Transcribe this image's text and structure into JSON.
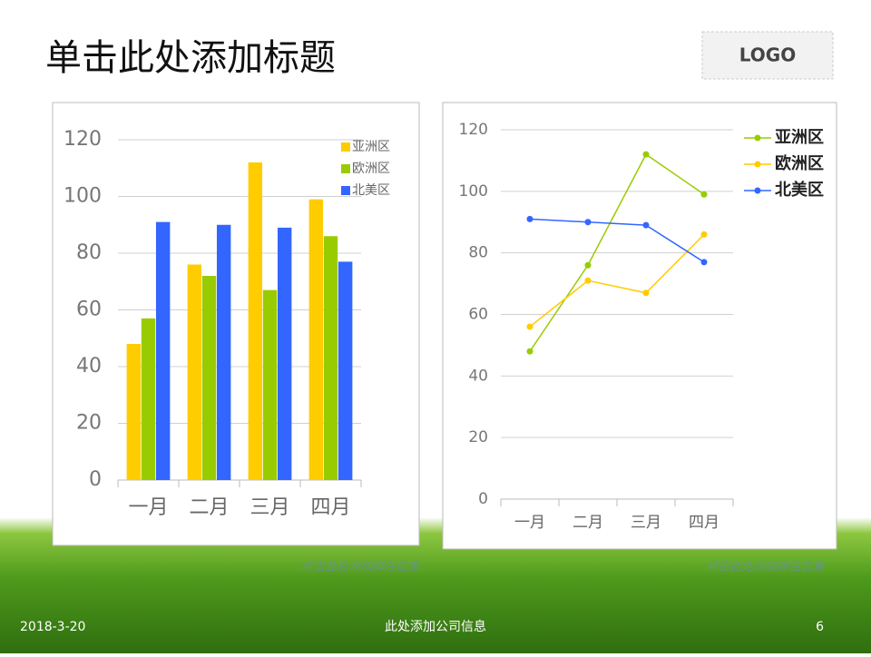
{
  "slide": {
    "title": "单击此处添加标题",
    "logo": "LOGO",
    "date": "2018-3-20",
    "company": "此处添加公司信息",
    "page": "6"
  },
  "chart_data": [
    {
      "type": "bar",
      "categories": [
        "一月",
        "二月",
        "三月",
        "四月"
      ],
      "series": [
        {
          "name": "亚洲区",
          "color": "#ffcc00",
          "values": [
            48,
            76,
            112,
            99
          ]
        },
        {
          "name": "欧洲区",
          "color": "#99cc00",
          "values": [
            57,
            72,
            67,
            86
          ]
        },
        {
          "name": "北美区",
          "color": "#3366ff",
          "values": [
            91,
            90,
            89,
            77
          ]
        }
      ],
      "ylim": [
        0,
        120
      ],
      "yticks": [
        0,
        20,
        40,
        60,
        80,
        100,
        120
      ],
      "grid": true,
      "legend": "top-right",
      "footnote": "点击此处添加脚注信息"
    },
    {
      "type": "line",
      "categories": [
        "一月",
        "二月",
        "三月",
        "四月"
      ],
      "series": [
        {
          "name": "亚洲区",
          "color": "#99cc00",
          "values": [
            48,
            76,
            112,
            99
          ]
        },
        {
          "name": "欧洲区",
          "color": "#ffcc00",
          "values": [
            56,
            71,
            67,
            86
          ]
        },
        {
          "name": "北美区",
          "color": "#3366ff",
          "values": [
            91,
            90,
            89,
            77
          ]
        }
      ],
      "ylim": [
        0,
        120
      ],
      "yticks": [
        0,
        20,
        40,
        60,
        80,
        100,
        120
      ],
      "grid": true,
      "legend": "right",
      "footnote": "点击此处添加脚注信息"
    }
  ]
}
